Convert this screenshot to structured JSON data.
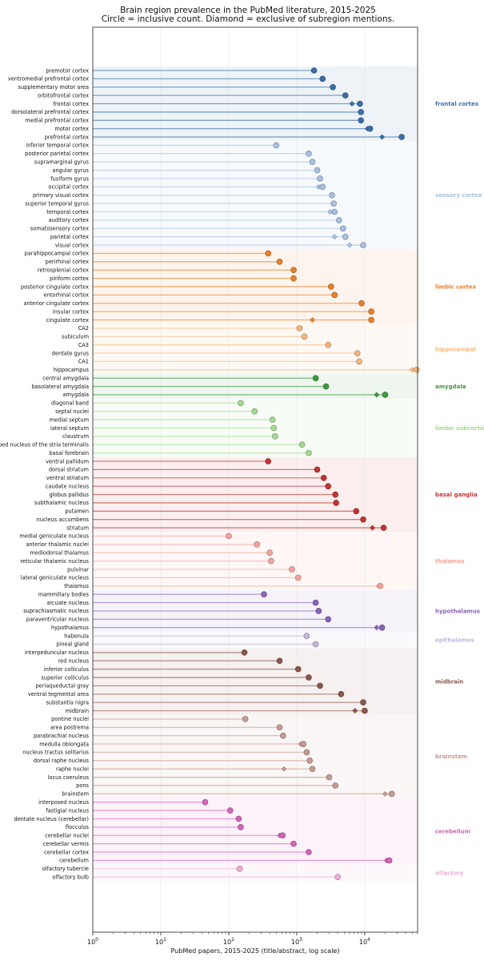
{
  "chart_data": {
    "type": "lollipop",
    "title": "Brain region prevalence in the PubMed literature, 2015-2025",
    "subtitle": "Circle = inclusive count.   Diamond = exclusive of subregion mentions.",
    "xlabel": "PubMed papers, 2015-2025 (title/abstract, log scale)",
    "x_scale": "log",
    "xlim": [
      1,
      60000
    ],
    "x_ticks": [
      {
        "value": 1,
        "base": "10",
        "exp": "0"
      },
      {
        "value": 10,
        "base": "10",
        "exp": "1"
      },
      {
        "value": 100,
        "base": "10",
        "exp": "2"
      },
      {
        "value": 1000,
        "base": "10",
        "exp": "3"
      },
      {
        "value": 10000,
        "base": "10",
        "exp": "4"
      }
    ],
    "grid": "vertical",
    "groups": [
      {
        "name": "frontal cortex",
        "color": "#3a6ea8",
        "regions": [
          {
            "label": "premotor cortex",
            "value": 1800
          },
          {
            "label": "ventromedial prefrontal cortex",
            "value": 2400
          },
          {
            "label": "supplementary motor area",
            "value": 3400
          },
          {
            "label": "orbitofrontal cortex",
            "value": 5200
          },
          {
            "label": "frontal cortex",
            "value": 8500,
            "exclusive": 6500
          },
          {
            "label": "dorsolateral prefrontal cortex",
            "value": 8800
          },
          {
            "label": "medial prefrontal cortex",
            "value": 8800
          },
          {
            "label": "motor cortex",
            "value": 12000,
            "exclusive": 11000
          },
          {
            "label": "prefrontal cortex",
            "value": 35000,
            "exclusive": 18000
          }
        ]
      },
      {
        "name": "sensory cortex",
        "color": "#a7bfe0",
        "regions": [
          {
            "label": "inferior temporal cortex",
            "value": 500
          },
          {
            "label": "posterior parietal cortex",
            "value": 1500
          },
          {
            "label": "supramarginal gyrus",
            "value": 1700
          },
          {
            "label": "angular gyrus",
            "value": 2000
          },
          {
            "label": "fusiform gyrus",
            "value": 2200
          },
          {
            "label": "occipital cortex",
            "value": 2400,
            "exclusive": 2100
          },
          {
            "label": "primary visual cortex",
            "value": 3300
          },
          {
            "label": "superior temporal gyrus",
            "value": 3500
          },
          {
            "label": "temporal cortex",
            "value": 3600,
            "exclusive": 3100
          },
          {
            "label": "auditory cortex",
            "value": 4200
          },
          {
            "label": "somatosensory cortex",
            "value": 4800
          },
          {
            "label": "parietal cortex",
            "value": 5200,
            "exclusive": 3600
          },
          {
            "label": "visual cortex",
            "value": 9500,
            "exclusive": 6000
          }
        ]
      },
      {
        "name": "limbic cortex",
        "color": "#e8802a",
        "regions": [
          {
            "label": "parahippocampal cortex",
            "value": 380
          },
          {
            "label": "perirhinal cortex",
            "value": 560
          },
          {
            "label": "retrosplenial cortex",
            "value": 900
          },
          {
            "label": "piriform cortex",
            "value": 900
          },
          {
            "label": "posterior cingulate cortex",
            "value": 3200
          },
          {
            "label": "entorhinal cortex",
            "value": 3600
          },
          {
            "label": "anterior cingulate cortex",
            "value": 9000
          },
          {
            "label": "insular cortex",
            "value": 12500
          },
          {
            "label": "cingulate cortex",
            "value": 12500,
            "exclusive": 1700
          }
        ]
      },
      {
        "name": "hippocampal",
        "color": "#f5b77e",
        "regions": [
          {
            "label": "CA2",
            "value": 1100
          },
          {
            "label": "subiculum",
            "value": 1300
          },
          {
            "label": "CA3",
            "value": 2900
          },
          {
            "label": "dentate gyrus",
            "value": 7800
          },
          {
            "label": "CA1",
            "value": 8300
          },
          {
            "label": "hippocampus",
            "value": 58000,
            "exclusive": 50000
          }
        ]
      },
      {
        "name": "amygdala",
        "color": "#3e9a3e",
        "regions": [
          {
            "label": "central amygdala",
            "value": 1900
          },
          {
            "label": "basolateral amygdala",
            "value": 2700
          },
          {
            "label": "amygdala",
            "value": 20000,
            "exclusive": 15000
          }
        ]
      },
      {
        "name": "limbic subcortical",
        "color": "#a5d891",
        "regions": [
          {
            "label": "diagonal band",
            "value": 150
          },
          {
            "label": "septal nuclei",
            "value": 240
          },
          {
            "label": "medial septum",
            "value": 440
          },
          {
            "label": "lateral septum",
            "value": 460
          },
          {
            "label": "claustrum",
            "value": 480
          },
          {
            "label": "bed nucleus of the stria terminalis",
            "value": 1200
          },
          {
            "label": "basal forebrain",
            "value": 1500
          }
        ]
      },
      {
        "name": "basal ganglia",
        "color": "#c43434",
        "regions": [
          {
            "label": "ventral pallidum",
            "value": 380
          },
          {
            "label": "dorsal striatum",
            "value": 2000
          },
          {
            "label": "ventral striatum",
            "value": 2500
          },
          {
            "label": "caudate nucleus",
            "value": 2900
          },
          {
            "label": "globus pallidus",
            "value": 3700
          },
          {
            "label": "subthalamic nucleus",
            "value": 3800
          },
          {
            "label": "putamen",
            "value": 7500
          },
          {
            "label": "nucleus accumbens",
            "value": 9500
          },
          {
            "label": "striatum",
            "value": 19000,
            "exclusive": 13000
          }
        ]
      },
      {
        "name": "thalamus",
        "color": "#f2a59c",
        "regions": [
          {
            "label": "medial geniculate nucleus",
            "value": 100
          },
          {
            "label": "anterior thalamic nuclei",
            "value": 260
          },
          {
            "label": "mediodorsal thalamus",
            "value": 400
          },
          {
            "label": "reticular thalamic nucleus",
            "value": 420
          },
          {
            "label": "pulvinar",
            "value": 850
          },
          {
            "label": "lateral geniculate nucleus",
            "value": 1050
          },
          {
            "label": "thalamus",
            "value": 17000,
            "exclusive": 16000
          }
        ]
      },
      {
        "name": "hypothalamus",
        "color": "#8a64b8",
        "regions": [
          {
            "label": "mammillary bodies",
            "value": 330
          },
          {
            "label": "arcuate nucleus",
            "value": 1900
          },
          {
            "label": "suprachiasmatic nucleus",
            "value": 2100
          },
          {
            "label": "paraventricular nucleus",
            "value": 2900
          },
          {
            "label": "hypothalamus",
            "value": 18000,
            "exclusive": 15000
          }
        ]
      },
      {
        "name": "epithalamus",
        "color": "#c2b6da",
        "regions": [
          {
            "label": "habenula",
            "value": 1400
          },
          {
            "label": "pineal gland",
            "value": 1900
          }
        ]
      },
      {
        "name": "midbrain",
        "color": "#8c574c",
        "regions": [
          {
            "label": "interpeduncular nucleus",
            "value": 170
          },
          {
            "label": "red nucleus",
            "value": 560
          },
          {
            "label": "inferior colliculus",
            "value": 1050
          },
          {
            "label": "superior colliculus",
            "value": 1500
          },
          {
            "label": "periaqueductal gray",
            "value": 2200
          },
          {
            "label": "ventral tegmental area",
            "value": 4500
          },
          {
            "label": "substantia nigra",
            "value": 9500
          },
          {
            "label": "midbrain",
            "value": 10000,
            "exclusive": 7200
          }
        ]
      },
      {
        "name": "brainstem",
        "color": "#c59b93",
        "regions": [
          {
            "label": "pontine nuclei",
            "value": 175
          },
          {
            "label": "area postrema",
            "value": 560
          },
          {
            "label": "parabrachial nucleus",
            "value": 630
          },
          {
            "label": "medulla oblongata",
            "value": 1250,
            "exclusive": 1150
          },
          {
            "label": "nucleus tractus solitarius",
            "value": 1400
          },
          {
            "label": "dorsal raphe nucleus",
            "value": 1550
          },
          {
            "label": "raphe nuclei",
            "value": 1700,
            "exclusive": 650
          },
          {
            "label": "locus coeruleus",
            "value": 3000
          },
          {
            "label": "pons",
            "value": 3700
          },
          {
            "label": "brainstem",
            "value": 25000,
            "exclusive": 20000
          }
        ]
      },
      {
        "name": "cerebellum",
        "color": "#d266b8",
        "regions": [
          {
            "label": "interposed nucleus",
            "value": 45
          },
          {
            "label": "fastigial nucleus",
            "value": 105
          },
          {
            "label": "dentate nucleus (cerebellar)",
            "value": 140
          },
          {
            "label": "flocculus",
            "value": 150
          },
          {
            "label": "cerebellar nuclei",
            "value": 620,
            "exclusive": 560
          },
          {
            "label": "cerebellar vermis",
            "value": 900
          },
          {
            "label": "cerebellar cortex",
            "value": 1500
          },
          {
            "label": "cerebellum",
            "value": 23000,
            "exclusive": 21000
          }
        ]
      },
      {
        "name": "olfactory",
        "color": "#f1acd3",
        "regions": [
          {
            "label": "olfactory tubercle",
            "value": 145
          },
          {
            "label": "olfactory bulb",
            "value": 4000
          }
        ]
      }
    ]
  }
}
